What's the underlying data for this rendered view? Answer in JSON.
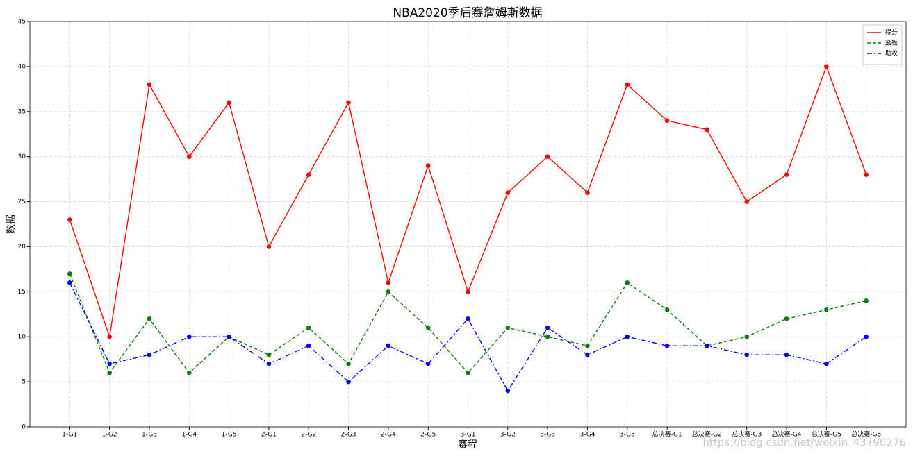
{
  "chart_data": {
    "type": "line",
    "title": "NBA2020季后赛詹姆斯数据",
    "x_label": "赛程",
    "y_label": "数据",
    "categories": [
      "1-G1",
      "1-G2",
      "1-G3",
      "1-G4",
      "1-G5",
      "2-G1",
      "2-G2",
      "2-G3",
      "2-G4",
      "2-G5",
      "3-G1",
      "3-G2",
      "3-G3",
      "3-G4",
      "3-G5",
      "总决赛-G1",
      "总决赛-G2",
      "总决赛-G3",
      "总决赛-G4",
      "总决赛-G5",
      "总决赛-G6"
    ],
    "series": [
      {
        "name": "得分",
        "color": "#ff0000",
        "linestyle": "solid",
        "values": [
          23,
          10,
          38,
          30,
          36,
          20,
          28,
          36,
          16,
          29,
          15,
          26,
          30,
          26,
          38,
          34,
          33,
          25,
          28,
          40,
          28
        ]
      },
      {
        "name": "篮板",
        "color": "#008000",
        "linestyle": "dashed",
        "values": [
          17,
          6,
          12,
          6,
          10,
          8,
          11,
          7,
          15,
          11,
          6,
          11,
          10,
          9,
          16,
          13,
          9,
          10,
          12,
          13,
          14
        ]
      },
      {
        "name": "助攻",
        "color": "#0000ff",
        "linestyle": "dashdot",
        "values": [
          16,
          7,
          8,
          10,
          10,
          7,
          9,
          5,
          9,
          7,
          12,
          4,
          11,
          8,
          10,
          9,
          9,
          8,
          8,
          7,
          10
        ]
      }
    ],
    "ylim": [
      0,
      45
    ],
    "yticks": [
      0,
      5,
      10,
      15,
      20,
      25,
      30,
      35,
      40,
      45
    ],
    "grid": true,
    "legend": "upper right",
    "annotation": "https://blog.csdn.net/weixin_43790276"
  }
}
